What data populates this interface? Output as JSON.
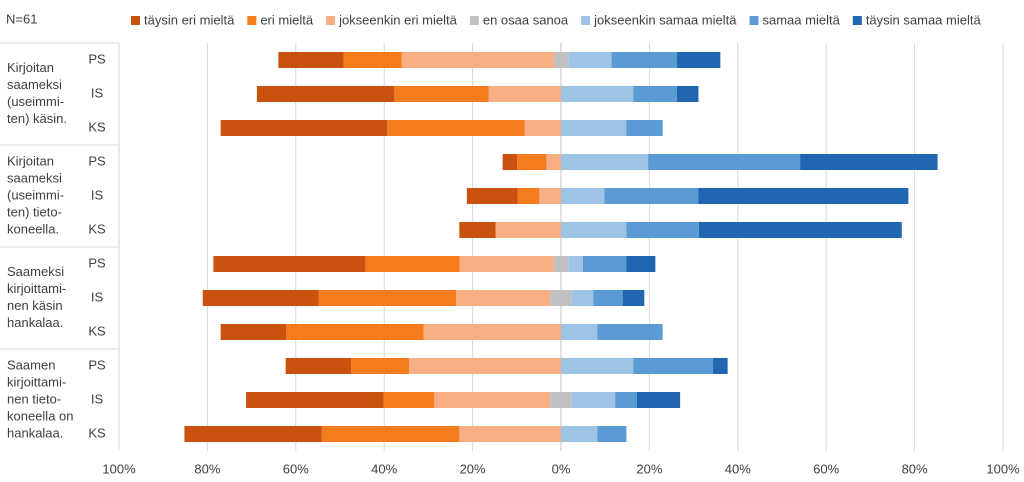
{
  "chart_data": {
    "type": "diverging_bar",
    "annotation": "N=61",
    "groups": [
      {
        "lines": [
          "Kirjoitan",
          "saameksi",
          "(useimmi-",
          "ten) käsin."
        ]
      },
      {
        "lines": [
          "Kirjoitan",
          "saameksi",
          "(useimmi-",
          "ten) tieto-",
          "koneella."
        ]
      },
      {
        "lines": [
          "Saameksi",
          "kirjoittami-",
          "nen käsin",
          "hankalaa."
        ]
      },
      {
        "lines": [
          "Saamen",
          "kirjoittami-",
          "nen tieto-",
          "koneella on",
          "hankalaa."
        ]
      }
    ],
    "categories": [
      "PS",
      "IS",
      "KS",
      "PS",
      "IS",
      "KS",
      "PS",
      "IS",
      "KS",
      "PS",
      "IS",
      "KS"
    ],
    "series": [
      {
        "name": "täysin eri mieltä",
        "color": "#c9530e",
        "values": [
          14.8,
          31.1,
          37.7,
          3.3,
          11.5,
          8.2,
          34.4,
          26.2,
          14.8,
          14.8,
          31.1,
          31.1
        ]
      },
      {
        "name": "eri mieltä",
        "color": "#f47c1f",
        "values": [
          13.1,
          21.3,
          31.1,
          6.6,
          4.9,
          0,
          21.3,
          31.1,
          31.1,
          13.1,
          11.5,
          31.1
        ]
      },
      {
        "name": "jokseenkin eri mieltä",
        "color": "#f8ae84",
        "values": [
          34.4,
          16.4,
          8.2,
          3.3,
          4.9,
          14.8,
          21.3,
          21.3,
          31.1,
          34.4,
          26.2,
          23.0
        ]
      },
      {
        "name": "en osaa sanoa",
        "color": "#c0c0c0",
        "values": [
          3.3,
          0,
          0,
          0,
          0,
          0,
          3.3,
          4.9,
          0,
          0,
          4.9,
          0
        ]
      },
      {
        "name": "jokseenkin samaa mieltä",
        "color": "#9dc3e6",
        "values": [
          9.8,
          16.4,
          14.8,
          19.7,
          9.8,
          14.8,
          3.3,
          4.9,
          8.2,
          16.4,
          9.8,
          8.2
        ]
      },
      {
        "name": "samaa mieltä",
        "color": "#5b9bd5",
        "values": [
          14.8,
          9.8,
          8.2,
          34.4,
          21.3,
          16.4,
          9.8,
          6.6,
          14.8,
          18.0,
          4.9,
          6.6
        ]
      },
      {
        "name": "täysin samaa mieltä",
        "color": "#2166b0",
        "values": [
          9.8,
          4.9,
          0,
          31.1,
          47.5,
          45.9,
          6.6,
          4.9,
          0,
          3.3,
          9.8,
          0
        ]
      }
    ],
    "xlim": [
      -100,
      100
    ],
    "xticks": [
      {
        "value": -100,
        "label": "100%"
      },
      {
        "value": -80,
        "label": "80%"
      },
      {
        "value": -60,
        "label": "60%"
      },
      {
        "value": -40,
        "label": "40%"
      },
      {
        "value": -20,
        "label": "20%"
      },
      {
        "value": 0,
        "label": "0%"
      },
      {
        "value": 20,
        "label": "20%"
      },
      {
        "value": 40,
        "label": "40%"
      },
      {
        "value": 60,
        "label": "60%"
      },
      {
        "value": 80,
        "label": "80%"
      },
      {
        "value": 100,
        "label": "100%"
      }
    ],
    "grid": true
  }
}
